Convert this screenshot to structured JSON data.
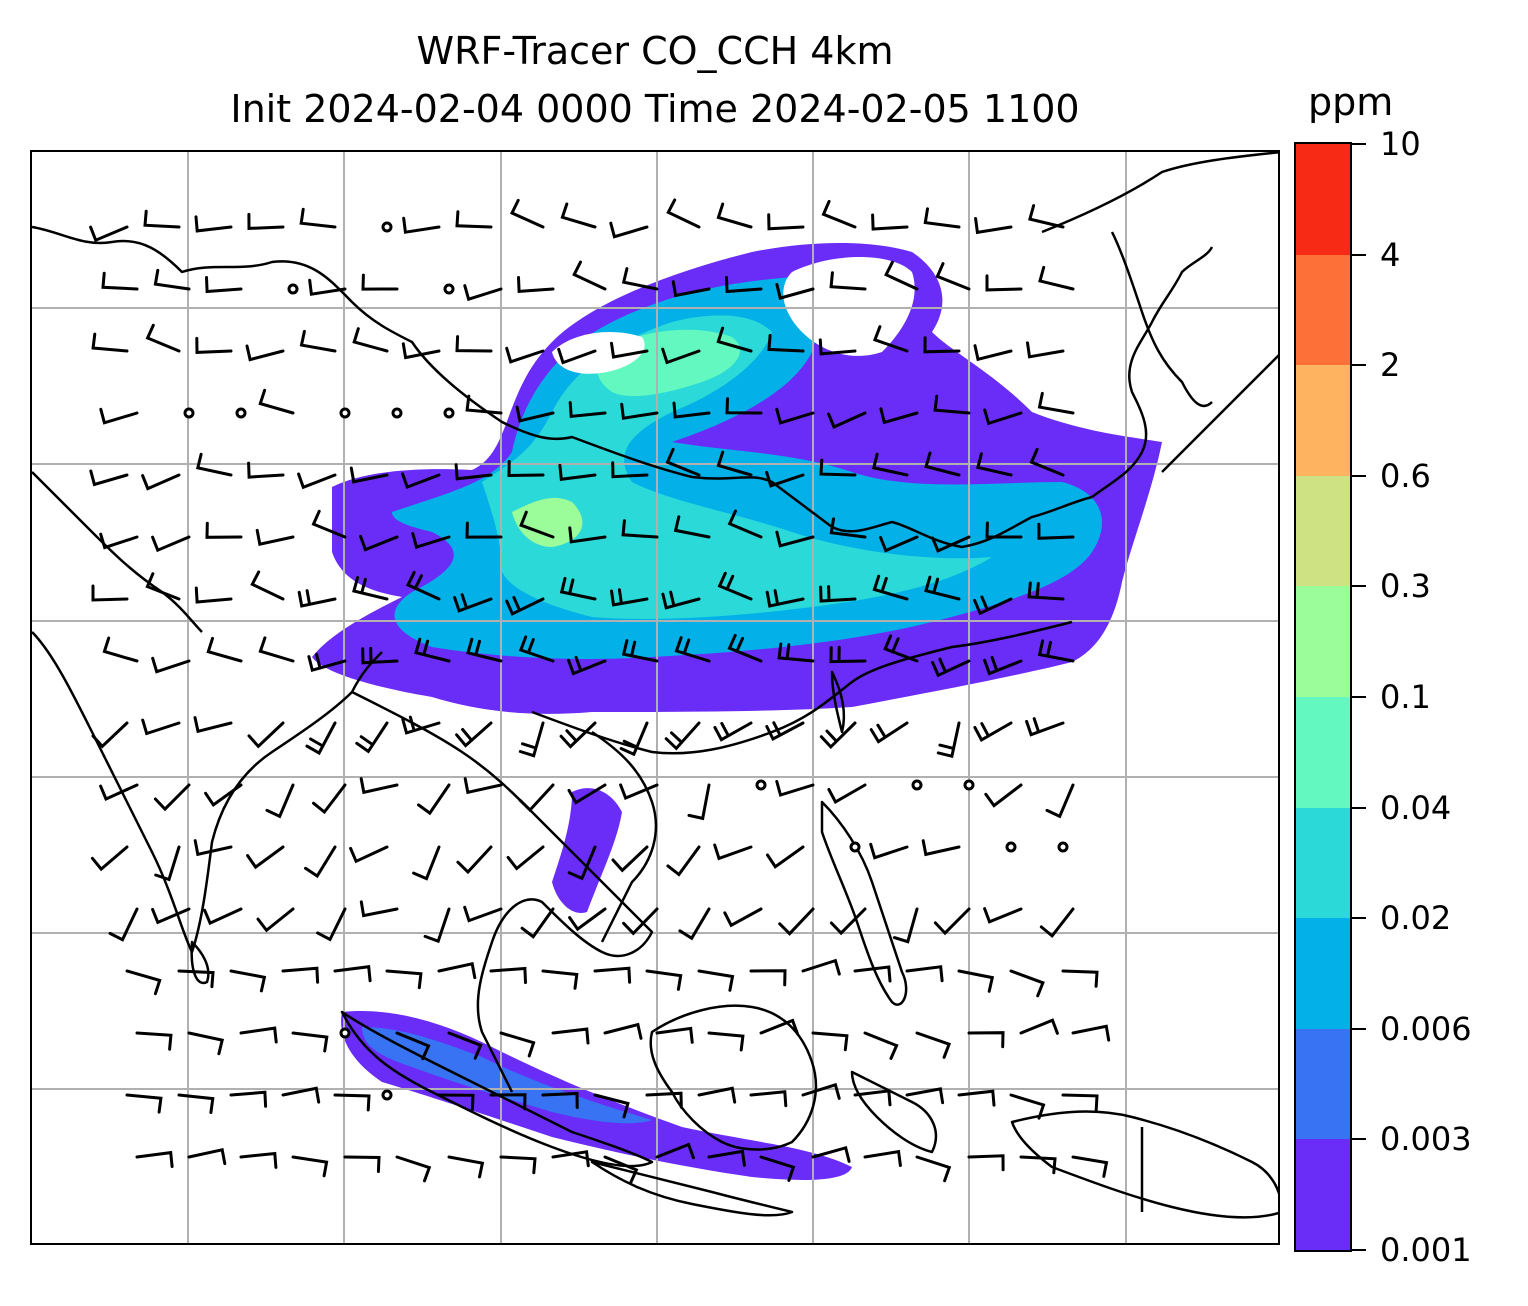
{
  "title": {
    "line1": "WRF-Tracer CO_CCH 4km",
    "line2": "Init 2024-02-04 0000 Time 2024-02-05 1100"
  },
  "colorbar": {
    "unit": "ppm",
    "levels": [
      "0.001",
      "0.003",
      "0.006",
      "0.02",
      "0.04",
      "0.1",
      "0.3",
      "0.6",
      "2",
      "4",
      "10"
    ],
    "colors": [
      "#6a2cf7",
      "#3773f3",
      "#03b1e8",
      "#2ad9d8",
      "#63f8c0",
      "#9bfc9a",
      "#cfe283",
      "#fdb35f",
      "#fd7038",
      "#f72b15"
    ]
  },
  "map": {
    "gridlines": true,
    "grid_color": "#b0b0b0",
    "coastline_color": "#000000",
    "barb_color": "#000000",
    "plume_colors": {
      "c1": "#6a2cf7",
      "c2": "#3773f3",
      "c3": "#03b1e8",
      "c4": "#2ad9d8",
      "c5": "#63f8c0",
      "c6": "#9bfc9a"
    }
  }
}
